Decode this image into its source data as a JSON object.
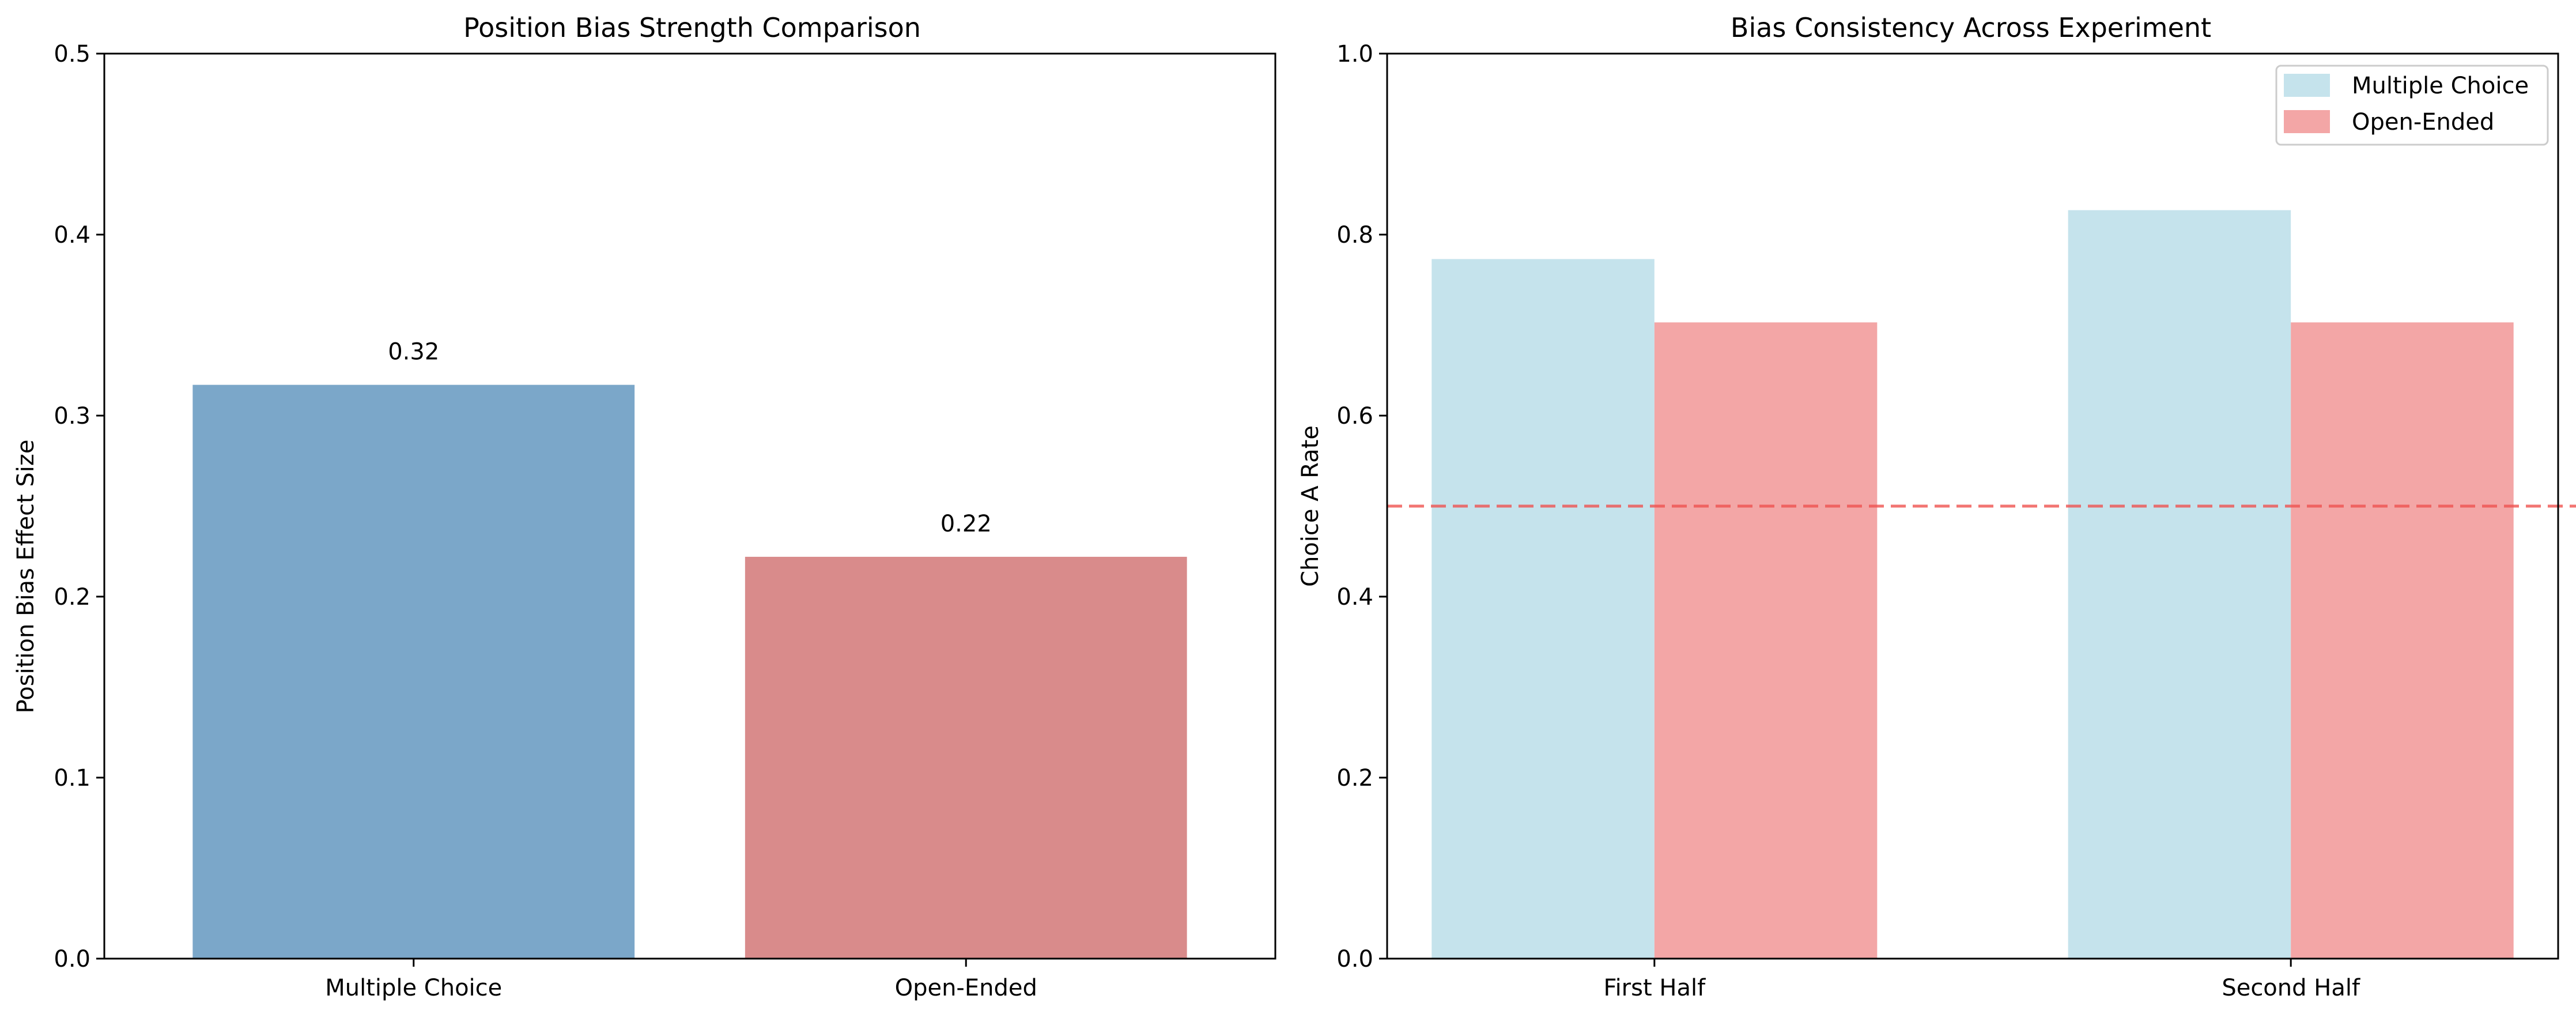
{
  "chart_data": [
    {
      "type": "bar",
      "title": "Position Bias Strength Comparison",
      "xlabel": "",
      "ylabel": "Position Bias Effect Size",
      "categories": [
        "Multiple Choice",
        "Open-Ended"
      ],
      "values": [
        0.317,
        0.222
      ],
      "data_labels": [
        "0.32",
        "0.22"
      ],
      "colors": [
        "#7ba7c9",
        "#d98b8b"
      ],
      "ylim": [
        0,
        0.5
      ],
      "yticks": [
        "0.0",
        "0.1",
        "0.2",
        "0.3",
        "0.4",
        "0.5"
      ],
      "grid": false
    },
    {
      "type": "bar",
      "title": "Bias Consistency Across Experiment",
      "xlabel": "",
      "ylabel": "Choice A Rate",
      "categories": [
        "First Half",
        "Second Half"
      ],
      "series": [
        {
          "name": "Multiple Choice",
          "values": [
            0.773,
            0.827
          ],
          "color": "#c5e3ec"
        },
        {
          "name": "Open-Ended",
          "values": [
            0.703,
            0.703
          ],
          "color": "#f3a6a6"
        }
      ],
      "reference_line": {
        "y": 0.5,
        "color": "#ef5350",
        "style": "dashed"
      },
      "ylim": [
        0,
        1.0
      ],
      "yticks": [
        "0.0",
        "0.2",
        "0.4",
        "0.6",
        "0.8",
        "1.0"
      ],
      "legend": "top-right",
      "grid": false
    }
  ]
}
